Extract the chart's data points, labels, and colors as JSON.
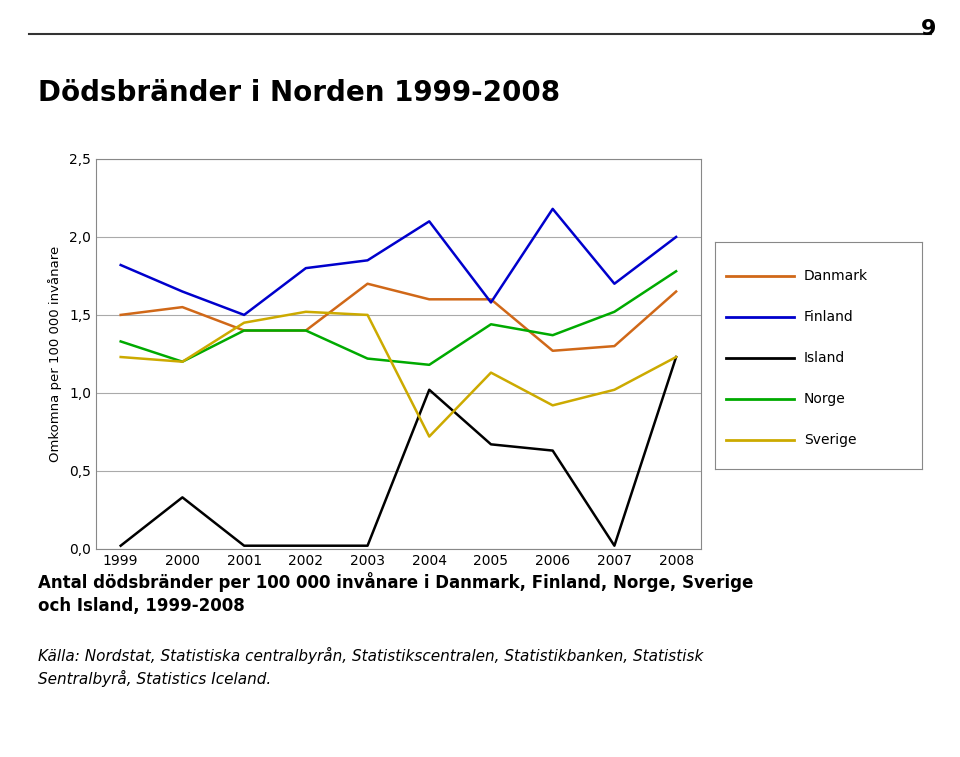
{
  "title": "Dödsbränder i Norden 1999-2008",
  "page_number": "9",
  "ylabel": "Omkomna per 100 000 invånare",
  "years": [
    1999,
    2000,
    2001,
    2002,
    2003,
    2004,
    2005,
    2006,
    2007,
    2008
  ],
  "series": {
    "Danmark": {
      "color": "#d06818",
      "values": [
        1.5,
        1.55,
        1.4,
        1.4,
        1.7,
        1.6,
        1.6,
        1.27,
        1.3,
        1.65
      ]
    },
    "Finland": {
      "color": "#0000cc",
      "values": [
        1.82,
        1.65,
        1.5,
        1.8,
        1.85,
        2.1,
        1.58,
        2.18,
        1.7,
        2.0
      ]
    },
    "Island": {
      "color": "#000000",
      "values": [
        0.02,
        0.33,
        0.02,
        0.02,
        0.02,
        1.02,
        0.67,
        0.63,
        0.02,
        1.23
      ]
    },
    "Norge": {
      "color": "#00aa00",
      "values": [
        1.33,
        1.2,
        1.4,
        1.4,
        1.22,
        1.18,
        1.44,
        1.37,
        1.52,
        1.78
      ]
    },
    "Sverige": {
      "color": "#ccaa00",
      "values": [
        1.23,
        1.2,
        1.45,
        1.52,
        1.5,
        0.72,
        1.13,
        0.92,
        1.02,
        1.23
      ]
    }
  },
  "ylim": [
    0.0,
    2.5
  ],
  "yticks": [
    0.0,
    0.5,
    1.0,
    1.5,
    2.0,
    2.5
  ],
  "ytick_labels": [
    "0,0",
    "0,5",
    "1,0",
    "1,5",
    "2,0",
    "2,5"
  ],
  "caption_bold": "Antal dödsbränder per 100 000 invånare i Danmark, Finland, Norge, Sverige\noch Island, 1999-2008",
  "caption_italic": "Källa: Nordstat, Statistiska centralbyrån, Statistikscentralen, Statistikbanken, Statistisk\nSentralbyrå, Statistics Iceland.",
  "background_color": "#ffffff",
  "plot_bg_color": "#ffffff",
  "grid_color": "#aaaaaa",
  "line_color_top": "#555555"
}
